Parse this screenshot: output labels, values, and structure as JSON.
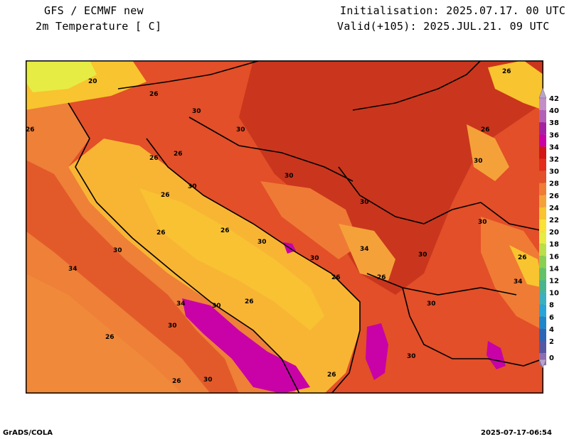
{
  "header": {
    "model": "GFS / ECMWF new",
    "variable": "2m Temperature [ C]",
    "init": "Initialisation: 2025.07.17. 00 UTC",
    "valid": "Valid(+105): 2025.JUL.21. 09 UTC"
  },
  "footer": {
    "left": "GrADS/COLA",
    "right": "2025-07-17-06:54"
  },
  "colorbar": {
    "ticks": [
      "42",
      "40",
      "38",
      "36",
      "34",
      "32",
      "30",
      "28",
      "26",
      "24",
      "22",
      "20",
      "18",
      "16",
      "14",
      "12",
      "10",
      "8",
      "6",
      "4",
      "2",
      "0"
    ],
    "colors": [
      "#c38ec7",
      "#b25fb7",
      "#a521a3",
      "#c802a7",
      "#d21416",
      "#e32c1b",
      "#e24f28",
      "#f07b35",
      "#f5a13a",
      "#f8c42f",
      "#fbe236",
      "#e6ec43",
      "#b9df49",
      "#89d052",
      "#62c26a",
      "#48b58f",
      "#3bb0c0",
      "#27a4d8",
      "#1e86cb",
      "#2c66b6",
      "#5558a3",
      "#8e6eb3"
    ]
  },
  "map_labels": [
    "20",
    "26",
    "26",
    "30",
    "30",
    "26",
    "26",
    "26",
    "30",
    "26",
    "30",
    "30",
    "30",
    "26",
    "30",
    "30",
    "26",
    "26",
    "30",
    "34",
    "30",
    "26",
    "30",
    "26",
    "34",
    "26",
    "34",
    "30",
    "34",
    "30",
    "26",
    "30",
    "30",
    "26",
    "26",
    "30",
    "26"
  ]
}
